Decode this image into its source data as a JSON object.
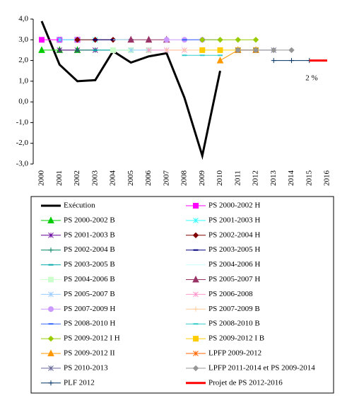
{
  "chart_data": {
    "type": "line",
    "categories": [
      "2000",
      "2001",
      "2002",
      "2003",
      "2004",
      "2005",
      "2006",
      "2007",
      "2008",
      "2009",
      "2010",
      "2011",
      "2012",
      "2013",
      "2014",
      "2015",
      "2016"
    ],
    "ylim": [
      -3,
      4
    ],
    "yticks": [
      {
        "value": 4,
        "label": "4,0"
      },
      {
        "value": 3,
        "label": "3,0"
      },
      {
        "value": 2,
        "label": "2,0"
      },
      {
        "value": 1,
        "label": "1,0"
      },
      {
        "value": 0,
        "label": "0,0"
      },
      {
        "value": -1,
        "label": "-1,0"
      },
      {
        "value": -2,
        "label": "-2,0"
      },
      {
        "value": -3,
        "label": "-3,0"
      }
    ],
    "annotation": "2 %",
    "annotation_color": "#ff0000",
    "series": [
      {
        "name": "Exécution",
        "color": "#000000",
        "width": 3,
        "marker": "none",
        "values": [
          3.9,
          1.8,
          1.0,
          1.05,
          2.45,
          1.9,
          2.2,
          2.35,
          0.2,
          -2.6,
          1.5,
          null,
          null,
          null,
          null,
          null,
          null
        ]
      },
      {
        "name": "PS 2000-2002 H",
        "color": "#ff00ff",
        "width": 1,
        "marker": "square",
        "values": [
          3,
          3,
          3,
          null,
          null,
          null,
          null,
          null,
          null,
          null,
          null,
          null,
          null,
          null,
          null,
          null,
          null
        ]
      },
      {
        "name": "PS 2000-2002 B",
        "color": "#00cc00",
        "width": 1,
        "marker": "triangle",
        "values": [
          2.5,
          2.5,
          2.5,
          null,
          null,
          null,
          null,
          null,
          null,
          null,
          null,
          null,
          null,
          null,
          null,
          null,
          null
        ]
      },
      {
        "name": "PS 2001-2003 H",
        "color": "#33ffff",
        "width": 1,
        "marker": "x",
        "values": [
          null,
          3,
          3,
          3,
          null,
          null,
          null,
          null,
          null,
          null,
          null,
          null,
          null,
          null,
          null,
          null,
          null
        ]
      },
      {
        "name": "PS 2001-2003 B",
        "color": "#660099",
        "width": 1,
        "marker": "x",
        "values": [
          null,
          2.5,
          2.5,
          2.5,
          null,
          null,
          null,
          null,
          null,
          null,
          null,
          null,
          null,
          null,
          null,
          null,
          null
        ]
      },
      {
        "name": "PS 2002-2004 H",
        "color": "#800000",
        "width": 1,
        "marker": "diamond",
        "values": [
          null,
          null,
          3,
          3,
          3,
          null,
          null,
          null,
          null,
          null,
          null,
          null,
          null,
          null,
          null,
          null,
          null
        ]
      },
      {
        "name": "PS 2002-2004 B",
        "color": "#008060",
        "width": 1,
        "marker": "plus",
        "values": [
          null,
          null,
          2.5,
          2.5,
          2.5,
          null,
          null,
          null,
          null,
          null,
          null,
          null,
          null,
          null,
          null,
          null,
          null
        ]
      },
      {
        "name": "PS 2003-2005 H",
        "color": "#000080",
        "width": 1,
        "marker": "dash",
        "values": [
          null,
          null,
          null,
          3,
          3,
          3,
          null,
          null,
          null,
          null,
          null,
          null,
          null,
          null,
          null,
          null,
          null
        ]
      },
      {
        "name": "PS 2003-2005 B",
        "color": "#00aaaa",
        "width": 1,
        "marker": "dash",
        "values": [
          null,
          null,
          null,
          2.5,
          2.5,
          2.5,
          null,
          null,
          null,
          null,
          null,
          null,
          null,
          null,
          null,
          null,
          null
        ]
      },
      {
        "name": "PS 2004-2006 H",
        "color": "#ccffff",
        "width": 1,
        "marker": "none",
        "values": [
          null,
          null,
          null,
          null,
          3,
          3,
          3,
          null,
          null,
          null,
          null,
          null,
          null,
          null,
          null,
          null,
          null
        ]
      },
      {
        "name": "PS 2004-2006 B",
        "color": "#ccffcc",
        "width": 1,
        "marker": "square",
        "values": [
          null,
          null,
          null,
          null,
          2.5,
          2.5,
          2.5,
          null,
          null,
          null,
          null,
          null,
          null,
          null,
          null,
          null,
          null
        ]
      },
      {
        "name": "PS 2005-2007 H",
        "color": "#993366",
        "width": 1,
        "marker": "triangle",
        "values": [
          null,
          null,
          null,
          null,
          null,
          3,
          3,
          3,
          null,
          null,
          null,
          null,
          null,
          null,
          null,
          null,
          null
        ]
      },
      {
        "name": "PS 2005-2007 B",
        "color": "#99ccff",
        "width": 1,
        "marker": "x",
        "values": [
          null,
          null,
          null,
          null,
          null,
          2.5,
          2.5,
          2.5,
          null,
          null,
          null,
          null,
          null,
          null,
          null,
          null,
          null
        ]
      },
      {
        "name": "PS 2006-2008",
        "color": "#ff99cc",
        "width": 1,
        "marker": "x",
        "values": [
          null,
          null,
          null,
          null,
          null,
          null,
          2.5,
          2.5,
          2.5,
          null,
          null,
          null,
          null,
          null,
          null,
          null,
          null
        ]
      },
      {
        "name": "PS 2007-2009 H",
        "color": "#cc99ff",
        "width": 1,
        "marker": "circle",
        "values": [
          null,
          null,
          null,
          null,
          null,
          null,
          null,
          3,
          3,
          3,
          null,
          null,
          null,
          null,
          null,
          null,
          null
        ]
      },
      {
        "name": "PS 2007-2009 B",
        "color": "#ffcc99",
        "width": 1,
        "marker": "plus",
        "values": [
          null,
          null,
          null,
          null,
          null,
          null,
          null,
          2.5,
          2.5,
          2.5,
          null,
          null,
          null,
          null,
          null,
          null,
          null
        ]
      },
      {
        "name": "PS 2008-2010 H",
        "color": "#3366ff",
        "width": 1,
        "marker": "dash",
        "values": [
          null,
          null,
          null,
          null,
          null,
          null,
          null,
          null,
          3,
          3,
          3,
          null,
          null,
          null,
          null,
          null,
          null
        ]
      },
      {
        "name": "PS 2008-2010 B",
        "color": "#33cccc",
        "width": 1,
        "marker": "dash",
        "values": [
          null,
          null,
          null,
          null,
          null,
          null,
          null,
          null,
          2.25,
          2.25,
          2.25,
          null,
          null,
          null,
          null,
          null,
          null
        ]
      },
      {
        "name": "PS 2009-2012 I H",
        "color": "#99cc00",
        "width": 1,
        "marker": "diamond",
        "values": [
          null,
          null,
          null,
          null,
          null,
          null,
          null,
          null,
          null,
          3,
          3,
          3,
          3,
          null,
          null,
          null,
          null
        ]
      },
      {
        "name": "PS 2009-2012 I B",
        "color": "#ffcc00",
        "width": 1,
        "marker": "square",
        "values": [
          null,
          null,
          null,
          null,
          null,
          null,
          null,
          null,
          null,
          2.5,
          2.5,
          2.5,
          2.5,
          null,
          null,
          null,
          null
        ]
      },
      {
        "name": "PS 2009-2012 II",
        "color": "#ff9900",
        "width": 1,
        "marker": "triangle",
        "values": [
          null,
          null,
          null,
          null,
          null,
          null,
          null,
          null,
          null,
          null,
          2.0,
          2.5,
          2.5,
          null,
          null,
          null,
          null
        ]
      },
      {
        "name": "LPFP 2009-2012",
        "color": "#ff6600",
        "width": 1,
        "marker": "x",
        "values": [
          null,
          null,
          null,
          null,
          null,
          null,
          null,
          null,
          null,
          null,
          null,
          2.5,
          2.5,
          null,
          null,
          null,
          null
        ]
      },
      {
        "name": "PS 2010-2013",
        "color": "#666699",
        "width": 1,
        "marker": "x",
        "values": [
          null,
          null,
          null,
          null,
          null,
          null,
          null,
          null,
          null,
          null,
          null,
          2.5,
          2.5,
          2.5,
          null,
          null,
          null
        ]
      },
      {
        "name": "LPFP 2011-2014 et PS 2009-2014",
        "color": "#969696",
        "width": 1,
        "marker": "diamond",
        "values": [
          null,
          null,
          null,
          null,
          null,
          null,
          null,
          null,
          null,
          null,
          null,
          2.5,
          2.5,
          2.5,
          2.5,
          null,
          null
        ]
      },
      {
        "name": "PLF 2012",
        "color": "#003366",
        "width": 1,
        "marker": "plus",
        "values": [
          null,
          null,
          null,
          null,
          null,
          null,
          null,
          null,
          null,
          null,
          null,
          null,
          null,
          2.0,
          2.0,
          2.0,
          null
        ]
      },
      {
        "name": "Projet de PS 2012-2016",
        "color": "#ff0000",
        "width": 3,
        "marker": "none",
        "values": [
          null,
          null,
          null,
          null,
          null,
          null,
          null,
          null,
          null,
          null,
          null,
          null,
          null,
          null,
          null,
          2.0,
          2.0
        ]
      }
    ]
  }
}
